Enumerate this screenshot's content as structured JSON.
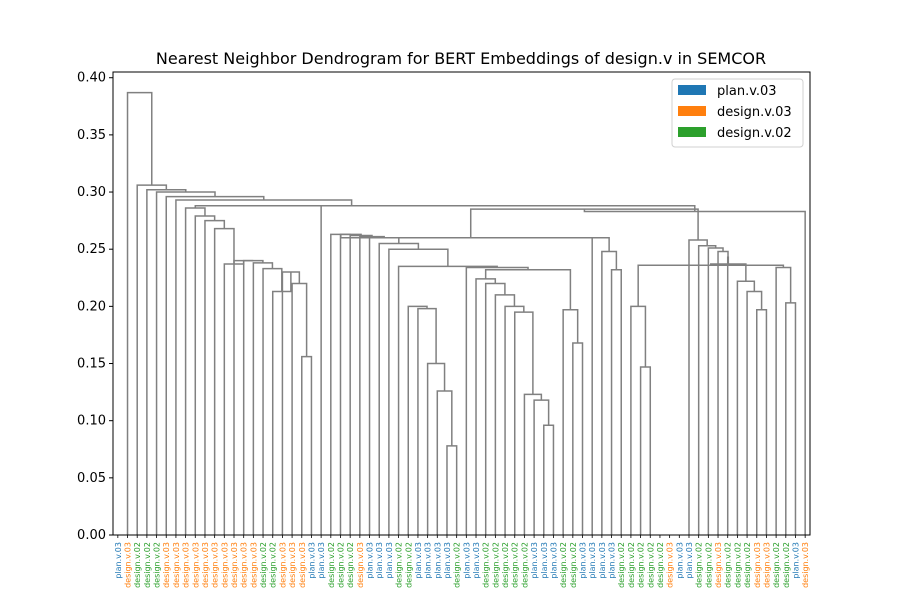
{
  "chart_data": {
    "type": "dendrogram",
    "title": "Nearest Neighbor Dendrogram for BERT Embeddings of design.v in SEMCOR",
    "xlabel": "",
    "ylabel": "",
    "ylim": [
      0,
      0.405
    ],
    "yticks": [
      0.0,
      0.05,
      0.1,
      0.15,
      0.2,
      0.25,
      0.3,
      0.35,
      0.4
    ],
    "ytick_labels": [
      "0.00",
      "0.05",
      "0.10",
      "0.15",
      "0.20",
      "0.25",
      "0.30",
      "0.35",
      "0.40"
    ],
    "legend_position": "top-right",
    "legend": [
      {
        "label": "plan.v.03",
        "color": "#1f77b4"
      },
      {
        "label": "design.v.03",
        "color": "#ff7f0e"
      },
      {
        "label": "design.v.02",
        "color": "#2ca02c"
      }
    ],
    "link_color": "#808080",
    "leaves": [
      "plan.v.03",
      "design.v.03",
      "design.v.02",
      "design.v.02",
      "design.v.02",
      "design.v.03",
      "design.v.03",
      "design.v.03",
      "design.v.03",
      "design.v.03",
      "design.v.03",
      "design.v.03",
      "design.v.03",
      "design.v.03",
      "design.v.03",
      "design.v.02",
      "design.v.02",
      "design.v.03",
      "design.v.03",
      "design.v.03",
      "plan.v.03",
      "plan.v.03",
      "design.v.02",
      "design.v.02",
      "design.v.02",
      "design.v.03",
      "plan.v.03",
      "plan.v.03",
      "plan.v.03",
      "design.v.02",
      "design.v.02",
      "plan.v.03",
      "plan.v.03",
      "plan.v.03",
      "plan.v.03",
      "design.v.02",
      "plan.v.03",
      "plan.v.03",
      "design.v.02",
      "design.v.02",
      "design.v.02",
      "design.v.02",
      "design.v.02",
      "plan.v.03",
      "plan.v.03",
      "plan.v.03",
      "design.v.02",
      "design.v.02",
      "plan.v.03",
      "plan.v.03",
      "plan.v.03",
      "plan.v.03",
      "design.v.02",
      "design.v.02",
      "design.v.02",
      "design.v.02",
      "design.v.02",
      "design.v.03",
      "plan.v.03",
      "plan.v.03",
      "design.v.02",
      "design.v.02",
      "design.v.03",
      "design.v.02",
      "design.v.02",
      "design.v.02",
      "design.v.03",
      "design.v.03",
      "design.v.02",
      "design.v.02",
      "plan.v.03",
      "design.v.03"
    ],
    "merges": [
      [
        34,
        35,
        0.078
      ],
      [
        33,
        72,
        0.126
      ],
      [
        32,
        73,
        0.15
      ],
      [
        31,
        74,
        0.198
      ],
      [
        30,
        75,
        0.2
      ],
      [
        44,
        45,
        0.096
      ],
      [
        43,
        77,
        0.118
      ],
      [
        42,
        78,
        0.123
      ],
      [
        41,
        79,
        0.195
      ],
      [
        40,
        80,
        0.2
      ],
      [
        39,
        81,
        0.21
      ],
      [
        38,
        82,
        0.22
      ],
      [
        37,
        83,
        0.224
      ],
      [
        47,
        48,
        0.168
      ],
      [
        46,
        85,
        0.197
      ],
      [
        84,
        86,
        0.232
      ],
      [
        36,
        87,
        0.234
      ],
      [
        29,
        88,
        0.235
      ],
      [
        28,
        89,
        0.25
      ],
      [
        27,
        90,
        0.255
      ],
      [
        26,
        91,
        0.26
      ],
      [
        25,
        92,
        0.261
      ],
      [
        24,
        93,
        0.262
      ],
      [
        23,
        94,
        0.263
      ],
      [
        22,
        95,
        0.263
      ],
      [
        51,
        52,
        0.232
      ],
      [
        50,
        97,
        0.248
      ],
      [
        49,
        98,
        0.26
      ],
      [
        96,
        99,
        0.26
      ],
      [
        66,
        67,
        0.197
      ],
      [
        65,
        101,
        0.213
      ],
      [
        64,
        102,
        0.222
      ],
      [
        54,
        55,
        0.147
      ],
      [
        53,
        104,
        0.2
      ],
      [
        69,
        70,
        0.203
      ],
      [
        68,
        106,
        0.234
      ],
      [
        105,
        107,
        0.236
      ],
      [
        103,
        108,
        0.237
      ],
      [
        63,
        109,
        0.243
      ],
      [
        62,
        110,
        0.248
      ],
      [
        61,
        111,
        0.251
      ],
      [
        60,
        112,
        0.253
      ],
      [
        59,
        113,
        0.258
      ],
      [
        100,
        114,
        0.285
      ],
      [
        71,
        115,
        0.283
      ],
      [
        19,
        20,
        0.156
      ],
      [
        18,
        117,
        0.22
      ],
      [
        17,
        118,
        0.23
      ],
      [
        16,
        119,
        0.213
      ],
      [
        15,
        120,
        0.233
      ],
      [
        14,
        121,
        0.238
      ],
      [
        13,
        122,
        0.24
      ],
      [
        12,
        123,
        0.24
      ],
      [
        11,
        124,
        0.237
      ],
      [
        10,
        125,
        0.268
      ],
      [
        9,
        126,
        0.275
      ],
      [
        8,
        127,
        0.279
      ],
      [
        21,
        116,
        0.288
      ],
      [
        7,
        128,
        0.286
      ],
      [
        129,
        130,
        0.288
      ],
      [
        6,
        131,
        0.293
      ],
      [
        5,
        132,
        0.296
      ],
      [
        4,
        133,
        0.3
      ],
      [
        3,
        134,
        0.302
      ],
      [
        2,
        135,
        0.306
      ],
      [
        1,
        136,
        0.387
      ]
    ]
  }
}
